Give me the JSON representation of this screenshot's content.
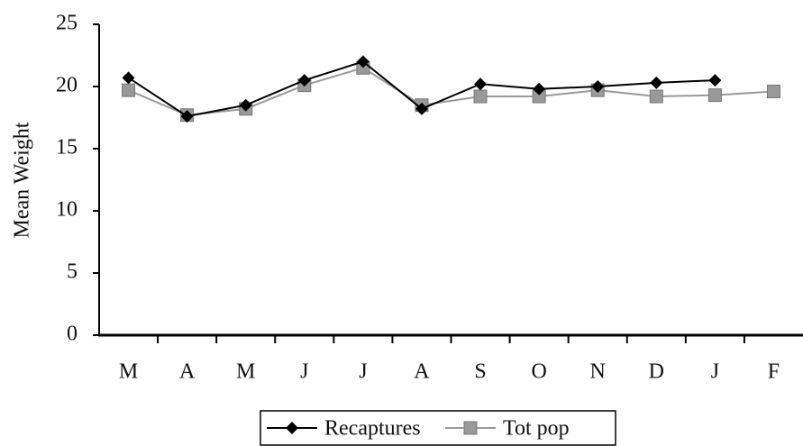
{
  "chart_data": {
    "type": "line",
    "y_label": "Mean Weight",
    "categories": [
      "M",
      "A",
      "M",
      "J",
      "J",
      "A",
      "S",
      "O",
      "N",
      "D",
      "J",
      "F"
    ],
    "series": [
      {
        "name": "Recaptures",
        "color": "#000000",
        "marker": "diamond",
        "values": [
          20.7,
          17.6,
          18.5,
          20.5,
          22.0,
          18.2,
          20.2,
          19.8,
          20.0,
          20.3,
          20.5,
          null
        ]
      },
      {
        "name": "Tot pop",
        "color": "#999999",
        "marker": "square",
        "values": [
          19.7,
          17.7,
          18.2,
          20.1,
          21.5,
          18.5,
          19.2,
          19.2,
          19.7,
          19.2,
          19.3,
          19.6
        ]
      }
    ],
    "ylim": [
      0,
      25
    ],
    "yticks": [
      0,
      5,
      10,
      15,
      20,
      25
    ],
    "grid": false,
    "legend": "bottom"
  }
}
